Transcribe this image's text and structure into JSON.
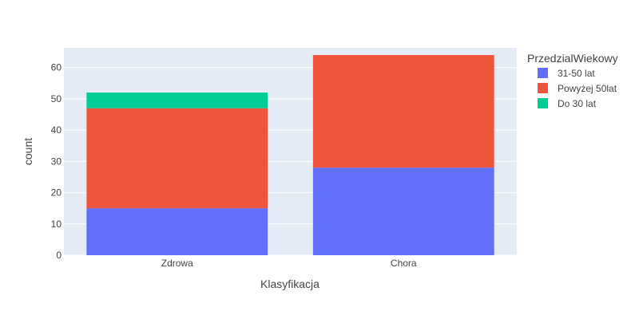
{
  "chart_data": {
    "type": "bar",
    "barmode": "stack",
    "xlabel": "Klasyfikacja",
    "ylabel": "count",
    "categories": [
      "Zdrowa",
      "Chora"
    ],
    "ylim": [
      0,
      66.3
    ],
    "yticks": [
      0,
      10,
      20,
      30,
      40,
      50,
      60
    ],
    "grid": true,
    "legend_title": "PrzedzialWiekowy",
    "legend_position": "right",
    "series": [
      {
        "name": "31-50 lat",
        "color": "#636efa",
        "values": [
          15,
          28
        ]
      },
      {
        "name": "Powyżej 50lat",
        "color": "#ef553b",
        "values": [
          32,
          36
        ]
      },
      {
        "name": "Do 30 lat",
        "color": "#00cc96",
        "values": [
          5,
          0
        ]
      }
    ]
  }
}
